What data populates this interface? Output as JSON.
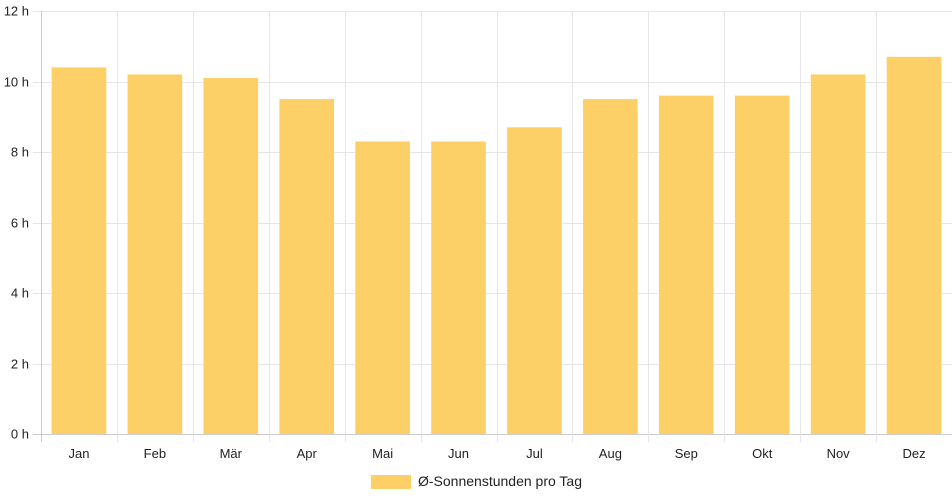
{
  "chart_data": {
    "type": "bar",
    "categories": [
      "Jan",
      "Feb",
      "Mär",
      "Apr",
      "Mai",
      "Jun",
      "Jul",
      "Aug",
      "Sep",
      "Okt",
      "Nov",
      "Dez"
    ],
    "series": [
      {
        "name": "Ø-Sonnenstunden pro Tag",
        "values": [
          10.4,
          10.2,
          10.1,
          9.5,
          8.3,
          8.3,
          8.7,
          9.5,
          9.6,
          9.6,
          10.2,
          10.7
        ],
        "color": "#fdd067"
      }
    ],
    "y_ticks": [
      "0 h",
      "2 h",
      "4 h",
      "6 h",
      "8 h",
      "10 h",
      "12 h"
    ],
    "ylim": [
      0,
      12
    ],
    "grid": true,
    "legend_position": "bottom",
    "grid_color": "#e6e6e6",
    "axis_color": "#cccccc"
  }
}
